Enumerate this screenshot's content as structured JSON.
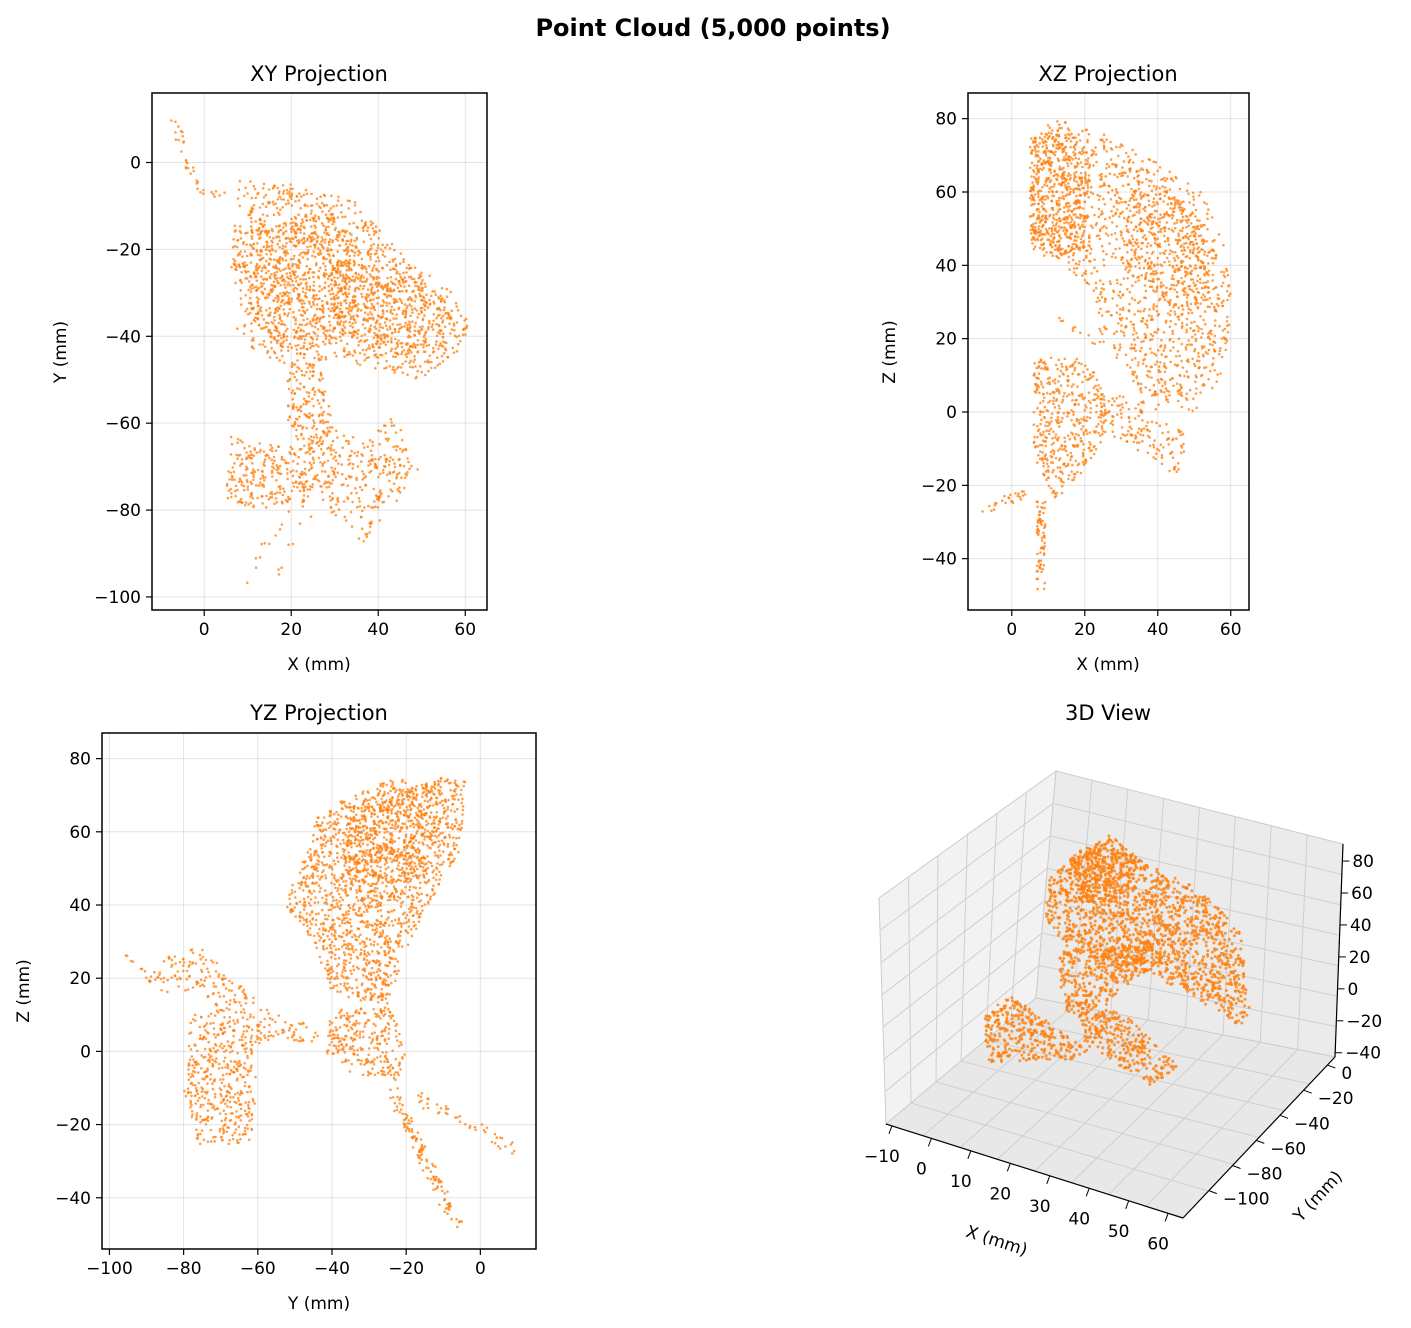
{
  "figure": {
    "title": "Point Cloud (5,000 points)"
  },
  "colors": {
    "points": "#ff7f0e",
    "grid": "#b0b0b0",
    "pane": "#f2f2f2"
  },
  "chart_data": [
    {
      "type": "scatter",
      "title": "XY Projection",
      "xlabel": "X (mm)",
      "ylabel": "Y (mm)",
      "xlim": [
        -12,
        65
      ],
      "ylim": [
        -103,
        16
      ],
      "xticks": [
        0,
        20,
        40,
        60
      ],
      "yticks": [
        0,
        -20,
        -40,
        -60,
        -80,
        -100
      ],
      "grid": true,
      "clusters": [
        {
          "shape": "poly",
          "pts": [
            [
              8,
              -4
            ],
            [
              20,
              -5
            ],
            [
              35,
              -9
            ],
            [
              48,
              -24
            ],
            [
              55,
              -27
            ],
            [
              61,
              -37
            ],
            [
              60,
              -42
            ],
            [
              50,
              -50
            ],
            [
              40,
              -48
            ],
            [
              30,
              -45
            ],
            [
              20,
              -47
            ],
            [
              8,
              -42
            ],
            [
              6,
              -25
            ]
          ],
          "n": 1200
        },
        {
          "shape": "poly",
          "pts": [
            [
              12,
              -15
            ],
            [
              30,
              -12
            ],
            [
              35,
              -20
            ],
            [
              32,
              -40
            ],
            [
              20,
              -45
            ],
            [
              12,
              -38
            ],
            [
              9,
              -25
            ]
          ],
          "n": 500
        },
        {
          "shape": "poly",
          "pts": [
            [
              30,
              -22
            ],
            [
              48,
              -25
            ],
            [
              58,
              -34
            ],
            [
              50,
              -45
            ],
            [
              35,
              -42
            ],
            [
              28,
              -32
            ]
          ],
          "n": 350
        },
        {
          "shape": "poly",
          "pts": [
            [
              6,
              -63
            ],
            [
              15,
              -65
            ],
            [
              25,
              -66
            ],
            [
              26,
              -72
            ],
            [
              24,
              -78
            ],
            [
              10,
              -80
            ],
            [
              5,
              -77
            ]
          ],
          "n": 250
        },
        {
          "shape": "poly",
          "pts": [
            [
              28,
              -60
            ],
            [
              37,
              -64
            ],
            [
              44,
              -58
            ],
            [
              48,
              -70
            ],
            [
              45,
              -78
            ],
            [
              36,
              -88
            ],
            [
              28,
              -80
            ],
            [
              24,
              -70
            ]
          ],
          "n": 260
        },
        {
          "shape": "poly",
          "pts": [
            [
              20,
              -45
            ],
            [
              27,
              -47
            ],
            [
              30,
              -62
            ],
            [
              24,
              -68
            ],
            [
              19,
              -60
            ],
            [
              19,
              -50
            ]
          ],
          "n": 170
        },
        {
          "shape": "line",
          "from": [
            -7,
            10
          ],
          "to": [
            -4,
            0
          ],
          "w": 1.2,
          "n": 14
        },
        {
          "shape": "line",
          "from": [
            -4,
            0
          ],
          "to": [
            -2,
            -7
          ],
          "w": 1.2,
          "n": 10
        },
        {
          "shape": "line",
          "from": [
            -2,
            -7
          ],
          "to": [
            4,
            -8
          ],
          "w": 1.2,
          "n": 10
        },
        {
          "shape": "line",
          "from": [
            20,
            -78
          ],
          "to": [
            9,
            -97
          ],
          "w": 1.5,
          "n": 12
        },
        {
          "shape": "line",
          "from": [
            30,
            -68
          ],
          "to": [
            16,
            -95
          ],
          "w": 1.5,
          "n": 14
        },
        {
          "shape": "line",
          "from": [
            36,
            -68
          ],
          "to": [
            52,
            -71
          ],
          "w": 1.5,
          "n": 16
        }
      ]
    },
    {
      "type": "scatter",
      "title": "XZ Projection",
      "xlabel": "X (mm)",
      "ylabel": "Z (mm)",
      "xlim": [
        -12,
        65
      ],
      "ylim": [
        -54,
        87
      ],
      "xticks": [
        0,
        20,
        40,
        60
      ],
      "yticks": [
        80,
        60,
        40,
        20,
        0,
        -20,
        -40
      ],
      "grid": true,
      "clusters": [
        {
          "shape": "poly",
          "pts": [
            [
              5,
              74
            ],
            [
              12,
              80
            ],
            [
              25,
              76
            ],
            [
              40,
              68
            ],
            [
              52,
              60
            ],
            [
              58,
              46
            ],
            [
              61,
              28
            ],
            [
              58,
              10
            ],
            [
              50,
              0
            ],
            [
              40,
              0
            ],
            [
              30,
              12
            ],
            [
              24,
              22
            ],
            [
              22,
              34
            ],
            [
              5,
              45
            ]
          ],
          "n": 1300
        },
        {
          "shape": "poly",
          "pts": [
            [
              5,
              75
            ],
            [
              15,
              78
            ],
            [
              22,
              70
            ],
            [
              20,
              45
            ],
            [
              12,
              42
            ],
            [
              5,
              46
            ]
          ],
          "n": 450
        },
        {
          "shape": "poly",
          "pts": [
            [
              30,
              58
            ],
            [
              42,
              62
            ],
            [
              52,
              52
            ],
            [
              55,
              30
            ],
            [
              45,
              28
            ],
            [
              33,
              35
            ]
          ],
          "n": 300
        },
        {
          "shape": "poly",
          "pts": [
            [
              6,
              14
            ],
            [
              16,
              16
            ],
            [
              22,
              12
            ],
            [
              26,
              4
            ],
            [
              25,
              -8
            ],
            [
              18,
              -18
            ],
            [
              12,
              -24
            ],
            [
              6,
              -12
            ]
          ],
          "n": 420
        },
        {
          "shape": "poly",
          "pts": [
            [
              22,
              6
            ],
            [
              35,
              4
            ],
            [
              48,
              -6
            ],
            [
              46,
              -18
            ],
            [
              36,
              -12
            ],
            [
              24,
              -5
            ]
          ],
          "n": 150
        },
        {
          "shape": "line",
          "from": [
            8,
            -24
          ],
          "to": [
            8,
            -48
          ],
          "w": 1.2,
          "n": 70
        },
        {
          "shape": "line",
          "from": [
            4,
            -22
          ],
          "to": [
            -8,
            -27
          ],
          "w": 1.2,
          "n": 25
        },
        {
          "shape": "line",
          "from": [
            12,
            26
          ],
          "to": [
            25,
            18
          ],
          "w": 1.0,
          "n": 12
        }
      ]
    },
    {
      "type": "scatter",
      "title": "YZ Projection",
      "xlabel": "Y (mm)",
      "ylabel": "Z (mm)",
      "xlim": [
        -102,
        15
      ],
      "ylim": [
        -54,
        87
      ],
      "xticks": [
        -100,
        -80,
        -60,
        -40,
        -20,
        0
      ],
      "yticks": [
        80,
        60,
        40,
        20,
        0,
        -20,
        -40
      ],
      "grid": true,
      "clusters": [
        {
          "shape": "poly",
          "pts": [
            [
              -44,
              64
            ],
            [
              -35,
              70
            ],
            [
              -25,
              74
            ],
            [
              -12,
              75
            ],
            [
              -4,
              74
            ],
            [
              -5,
              56
            ],
            [
              -14,
              40
            ],
            [
              -20,
              28
            ],
            [
              -25,
              12
            ],
            [
              -40,
              16
            ],
            [
              -45,
              30
            ],
            [
              -53,
              40
            ],
            [
              -48,
              52
            ]
          ],
          "n": 1600
        },
        {
          "shape": "poly",
          "pts": [
            [
              -36,
              66
            ],
            [
              -24,
              72
            ],
            [
              -10,
              74
            ],
            [
              -14,
              50
            ],
            [
              -28,
              44
            ],
            [
              -38,
              50
            ]
          ],
          "n": 400
        },
        {
          "shape": "poly",
          "pts": [
            [
              -40,
              12
            ],
            [
              -24,
              12
            ],
            [
              -20,
              0
            ],
            [
              -22,
              -8
            ],
            [
              -36,
              -6
            ],
            [
              -42,
              0
            ]
          ],
          "n": 250
        },
        {
          "shape": "poly",
          "pts": [
            [
              -78,
              10
            ],
            [
              -70,
              12
            ],
            [
              -62,
              5
            ],
            [
              -60,
              -8
            ],
            [
              -62,
              -25
            ],
            [
              -76,
              -26
            ],
            [
              -80,
              -10
            ]
          ],
          "n": 420
        },
        {
          "shape": "poly",
          "pts": [
            [
              -82,
              28
            ],
            [
              -75,
              28
            ],
            [
              -55,
              10
            ],
            [
              -45,
              7
            ],
            [
              -60,
              2
            ],
            [
              -75,
              15
            ],
            [
              -90,
              20
            ]
          ],
          "n": 180
        },
        {
          "shape": "line",
          "from": [
            -24,
            -10
          ],
          "to": [
            -6,
            -48
          ],
          "w": 1.5,
          "n": 120
        },
        {
          "shape": "line",
          "from": [
            -18,
            -12
          ],
          "to": [
            10,
            -27
          ],
          "w": 1.5,
          "n": 45
        },
        {
          "shape": "line",
          "from": [
            -96,
            26
          ],
          "to": [
            -84,
            16
          ],
          "w": 1.2,
          "n": 15
        },
        {
          "shape": "line",
          "from": [
            -62,
            4
          ],
          "to": [
            -38,
            4
          ],
          "w": 1.5,
          "n": 40
        }
      ]
    },
    {
      "type": "scatter",
      "title": "3D View",
      "xlabel": "X (mm)",
      "ylabel": "Y (mm)",
      "zlabel": "Z (mm)",
      "xticks": [
        -10,
        0,
        10,
        20,
        30,
        40,
        50,
        60
      ],
      "yticks": [
        0,
        -20,
        -40,
        -60,
        -80,
        -100
      ],
      "zticks": [
        80,
        60,
        40,
        20,
        0,
        -20,
        -40
      ],
      "grid": true
    }
  ]
}
